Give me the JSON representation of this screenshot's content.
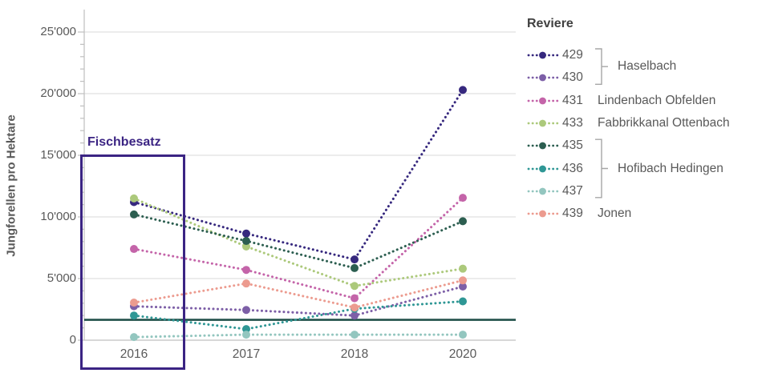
{
  "colors": {
    "background": "#FFFFFF",
    "gridline": "#D9D9D9",
    "axis_line": "#BFBFBF",
    "axis_text": "#595959",
    "legend_title_text": "#404040",
    "bracket": "#A6A6A6",
    "annotation": "#3B2483",
    "reference_line": "#21504A"
  },
  "legend": {
    "title": "Reviere",
    "groups": [
      {
        "label": "Haselbach",
        "series_ids": [
          "429",
          "430"
        ],
        "bracket": true
      },
      {
        "label": "Lindenbach Obfelden",
        "series_ids": [
          "431"
        ],
        "bracket": false
      },
      {
        "label": "Fabbrikkanal Ottenbach",
        "series_ids": [
          "433"
        ],
        "bracket": false
      },
      {
        "label": "Hofibach Hedingen",
        "series_ids": [
          "435",
          "436",
          "437"
        ],
        "bracket": true
      },
      {
        "label": "Jonen",
        "series_ids": [
          "439"
        ],
        "bracket": false
      }
    ]
  },
  "chart_data": {
    "type": "line",
    "line_style": "dotted",
    "title": "",
    "xlabel": "",
    "ylabel": "Jungforellen pro Hektare",
    "categories": [
      "2016",
      "2017",
      "2018",
      "2020"
    ],
    "ylim": [
      0,
      25000
    ],
    "y_major_tick_step": 5000,
    "y_minor_tick_step": 1000,
    "y_tick_labels": [
      "0",
      "5'000",
      "10'000",
      "15'000",
      "20'000",
      "25'000"
    ],
    "grid": "horizontal",
    "legend_position": "right",
    "legend_title": "Reviere",
    "annotation_box": {
      "label": "Fischbesatz",
      "x_category": "2016"
    },
    "reference_line": {
      "value": 1650
    },
    "series": [
      {
        "id": "429",
        "name": "429",
        "group": "Haselbach",
        "color": "#36287E",
        "values": [
          11200,
          8650,
          6550,
          20300
        ]
      },
      {
        "id": "430",
        "name": "430",
        "group": "Haselbach",
        "color": "#7D5FA7",
        "values": [
          2750,
          2450,
          2000,
          4350
        ]
      },
      {
        "id": "431",
        "name": "431",
        "group": "Lindenbach Obfelden",
        "color": "#C464A9",
        "values": [
          7400,
          5700,
          3400,
          11550
        ]
      },
      {
        "id": "433",
        "name": "433",
        "group": "Fabbrikkanal Ottenbach",
        "color": "#ACC97B",
        "values": [
          11500,
          7600,
          4400,
          5800
        ]
      },
      {
        "id": "435",
        "name": "435",
        "group": "Hofibach Hedingen",
        "color": "#2C5E50",
        "values": [
          10200,
          8050,
          5850,
          9650
        ]
      },
      {
        "id": "436",
        "name": "436",
        "group": "Hofibach Hedingen",
        "color": "#2F9795",
        "values": [
          2000,
          900,
          2550,
          3150
        ]
      },
      {
        "id": "437",
        "name": "437",
        "group": "Hofibach Hedingen",
        "color": "#93C6BF",
        "values": [
          250,
          450,
          450,
          450
        ]
      },
      {
        "id": "439",
        "name": "439",
        "group": "Jonen",
        "color": "#EC9B8F",
        "values": [
          3050,
          4600,
          2650,
          4850
        ]
      }
    ]
  }
}
